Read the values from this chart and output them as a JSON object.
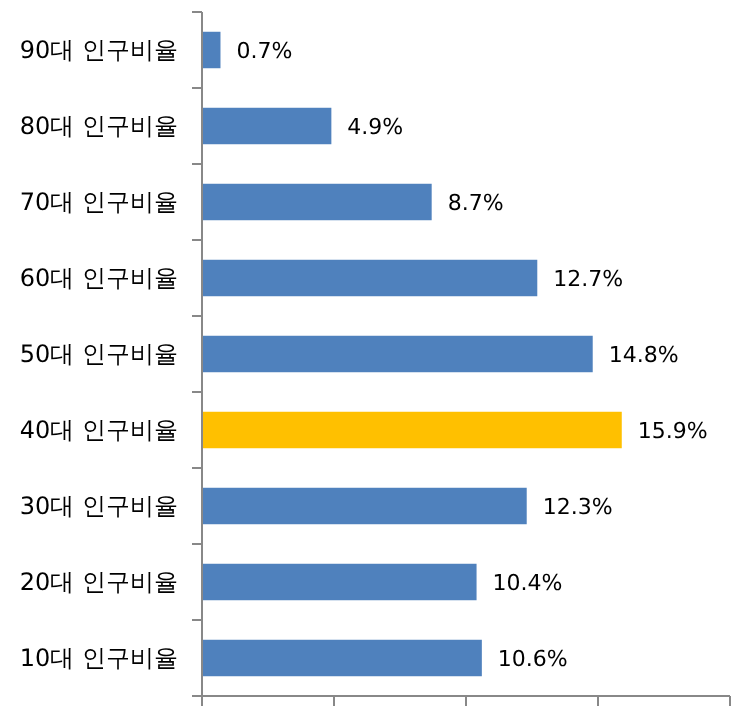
{
  "chart_data": {
    "type": "bar",
    "orientation": "horizontal",
    "categories": [
      "90대 인구비율",
      "80대 인구비율",
      "70대 인구비율",
      "60대 인구비율",
      "50대 인구비율",
      "40대 인구비율",
      "30대 인구비율",
      "20대 인구비율",
      "10대 인구비율"
    ],
    "values": [
      0.7,
      4.9,
      8.7,
      12.7,
      14.8,
      15.9,
      12.3,
      10.4,
      10.6
    ],
    "value_labels": [
      "0.7%",
      "4.9%",
      "8.7%",
      "12.7%",
      "14.8%",
      "15.9%",
      "12.3%",
      "10.4%",
      "10.6%"
    ],
    "colors": [
      "#4f81bd",
      "#4f81bd",
      "#4f81bd",
      "#4f81bd",
      "#4f81bd",
      "#ffc000",
      "#4f81bd",
      "#4f81bd",
      "#4f81bd"
    ],
    "xlim": [
      0,
      20
    ],
    "xticks": [
      {
        "value": 0,
        "label": null
      },
      {
        "value": 5,
        "label": null
      },
      {
        "value": 10,
        "label": null
      },
      {
        "value": 15,
        "label": null
      },
      {
        "value": 20,
        "label": null
      }
    ],
    "tick_labels": "y"
  }
}
